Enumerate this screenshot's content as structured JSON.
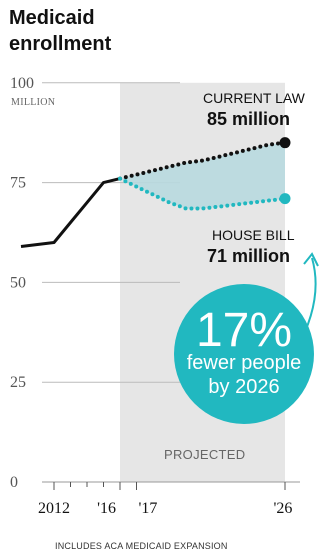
{
  "chart_data": {
    "type": "line",
    "title": "Medicaid enrollment",
    "y_axis": {
      "ticks": [
        0,
        25,
        50,
        75,
        100
      ],
      "tick_labels": [
        "0",
        "25",
        "50",
        "75",
        "100"
      ],
      "unit_label": "MILLION",
      "ylim": [
        0,
        100
      ]
    },
    "x_axis": {
      "range": [
        2010,
        2026
      ],
      "tick_labels": [
        "2012",
        "'16",
        "'17",
        "'26"
      ],
      "tick_values": [
        2012,
        2016,
        2017,
        2026
      ]
    },
    "projection": {
      "label": "PROJECTED",
      "start": 2016,
      "end": 2026
    },
    "series": [
      {
        "name": "Historical",
        "color": "#111111",
        "style": "solid",
        "x": [
          2010,
          2012,
          2013,
          2014,
          2015,
          2016
        ],
        "y": [
          59,
          60,
          65,
          70,
          75,
          76
        ]
      },
      {
        "name": "CURRENT LAW",
        "color": "#111111",
        "style": "dotted",
        "x": [
          2016,
          2017,
          2018,
          2019,
          2020,
          2021,
          2022,
          2023,
          2024,
          2025,
          2026
        ],
        "y": [
          76,
          77,
          78,
          79,
          80,
          80.5,
          81.5,
          82.5,
          83.5,
          84.5,
          85
        ]
      },
      {
        "name": "HOUSE BILL",
        "color": "#21b8c0",
        "style": "dotted",
        "x": [
          2016,
          2017,
          2018,
          2019,
          2020,
          2021,
          2022,
          2023,
          2024,
          2025,
          2026
        ],
        "y": [
          76,
          74,
          72,
          70,
          68.5,
          68.5,
          69,
          69.5,
          70,
          70.5,
          71
        ]
      }
    ],
    "annotations": {
      "current_law": {
        "label": "CURRENT LAW",
        "value": "85 million"
      },
      "house_bill": {
        "label": "HOUSE BILL",
        "value": "71 million"
      },
      "callout": {
        "big": "17%",
        "line1": "fewer people",
        "line2": "by 2026"
      }
    },
    "note": "INCLUDES ACA MEDICAID EXPANSION",
    "grid": true,
    "colors": {
      "accent": "#21b8c0",
      "fill": "#b8d9df",
      "projection_bg": "#e6e6e6",
      "grid": "#bbbbbb"
    }
  }
}
